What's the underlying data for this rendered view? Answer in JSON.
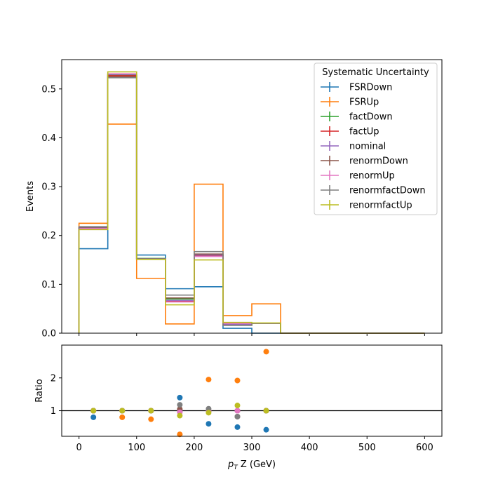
{
  "chart_data": {
    "type": "step-histogram-with-ratio",
    "legend": {
      "title": "Systematic Uncertainty",
      "placement": "top-right"
    },
    "top": {
      "ylabel": "Events",
      "xlim": [
        -30,
        630
      ],
      "ylim": [
        0,
        0.56
      ],
      "yticks": [
        0.0,
        0.1,
        0.2,
        0.3,
        0.4,
        0.5
      ],
      "ytick_labels": [
        "0.0",
        "0.1",
        "0.2",
        "0.3",
        "0.4",
        "0.5"
      ]
    },
    "bottom": {
      "ylabel": "Ratio",
      "xlabel_main": "p",
      "xlabel_sub": "T",
      "xlabel_rest": " Z (GeV)",
      "xlim": [
        -30,
        630
      ],
      "ylim": [
        0.22,
        3.0
      ],
      "yticks": [
        1,
        2
      ],
      "ytick_labels": [
        "1",
        "2"
      ],
      "reference_line": 1,
      "xticks": [
        0,
        100,
        200,
        300,
        400,
        500,
        600
      ],
      "xtick_labels": [
        "0",
        "100",
        "200",
        "300",
        "400",
        "500",
        "600"
      ]
    },
    "bin_edges": [
      0,
      50,
      100,
      150,
      200,
      250,
      300,
      350,
      400,
      450,
      500,
      550,
      600
    ],
    "bin_centers": [
      25,
      75,
      125,
      175,
      225,
      275,
      325
    ],
    "series": [
      {
        "name": "FSRDown",
        "color": "#1f77b4",
        "values": [
          0.173,
          0.53,
          0.16,
          0.091,
          0.095,
          0.01,
          0.0,
          0,
          0,
          0,
          0,
          0
        ],
        "ratio": [
          0.8,
          null,
          null,
          1.4,
          0.6,
          0.5,
          0.42
        ]
      },
      {
        "name": "FSRUp",
        "color": "#ff7f0e",
        "values": [
          0.225,
          0.428,
          0.112,
          0.019,
          0.305,
          0.036,
          0.06,
          0,
          0,
          0,
          0,
          0
        ],
        "ratio": [
          null,
          0.8,
          0.74,
          0.28,
          1.95,
          1.92,
          2.8
        ]
      },
      {
        "name": "factDown",
        "color": "#2ca02c",
        "values": [
          0.216,
          0.528,
          0.153,
          0.07,
          0.16,
          0.02,
          0.02,
          0,
          0,
          0,
          0,
          0
        ],
        "ratio": [
          1.0,
          1.0,
          1.0,
          1.0,
          1.0,
          1.0,
          1.0
        ]
      },
      {
        "name": "factUp",
        "color": "#d62728",
        "values": [
          0.215,
          0.527,
          0.152,
          0.065,
          0.158,
          0.018,
          0.02,
          0,
          0,
          0,
          0,
          0
        ],
        "ratio": [
          1.0,
          1.0,
          1.0,
          1.0,
          1.0,
          1.0,
          1.0
        ]
      },
      {
        "name": "nominal",
        "color": "#9467bd",
        "values": [
          0.215,
          0.53,
          0.152,
          0.067,
          0.16,
          0.018,
          0.02,
          0,
          0,
          0,
          0,
          0
        ],
        "ratio": [
          1.0,
          1.0,
          1.0,
          1.0,
          1.0,
          1.0,
          1.0
        ]
      },
      {
        "name": "renormDown",
        "color": "#8c564b",
        "values": [
          0.217,
          0.525,
          0.152,
          0.072,
          0.162,
          0.016,
          0.02,
          0,
          0,
          0,
          0,
          0
        ],
        "ratio": [
          1.0,
          1.0,
          1.0,
          1.05,
          1.0,
          0.82,
          1.0
        ]
      },
      {
        "name": "renormUp",
        "color": "#e377c2",
        "values": [
          0.214,
          0.531,
          0.152,
          0.064,
          0.157,
          0.02,
          0.02,
          0,
          0,
          0,
          0,
          0
        ],
        "ratio": [
          1.0,
          1.0,
          1.0,
          0.95,
          1.0,
          1.0,
          1.0
        ]
      },
      {
        "name": "renormfactDown",
        "color": "#7f7f7f",
        "values": [
          0.218,
          0.523,
          0.152,
          0.078,
          0.167,
          0.016,
          0.02,
          0,
          0,
          0,
          0,
          0
        ],
        "ratio": [
          1.0,
          1.0,
          1.0,
          1.18,
          1.06,
          0.82,
          1.0
        ]
      },
      {
        "name": "renormfactUp",
        "color": "#bcbd22",
        "values": [
          0.212,
          0.535,
          0.151,
          0.058,
          0.15,
          0.022,
          0.021,
          0,
          0,
          0,
          0,
          0
        ],
        "ratio": [
          1.0,
          1.0,
          1.0,
          0.85,
          0.94,
          1.16,
          1.0
        ]
      }
    ]
  }
}
